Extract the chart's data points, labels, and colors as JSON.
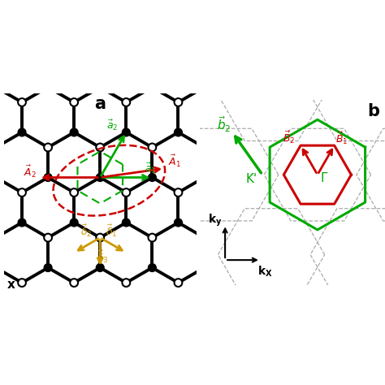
{
  "panel_a_label": "a",
  "panel_b_label": "b",
  "bg_color": "#ffffff",
  "lattice_color": "#000000",
  "black_node_color": "#000000",
  "white_node_color": "#ffffff",
  "node_edge_color": "#000000",
  "green_color": "#00aa00",
  "red_color": "#cc0000",
  "gold_color": "#cc9900",
  "bz_dashed_color": "#aaaaaa",
  "bz_green_color": "#00aa00",
  "bz_red_color": "#cc0000",
  "bond_lw": 2.8,
  "node_r": 0.12,
  "a0": 1.0
}
